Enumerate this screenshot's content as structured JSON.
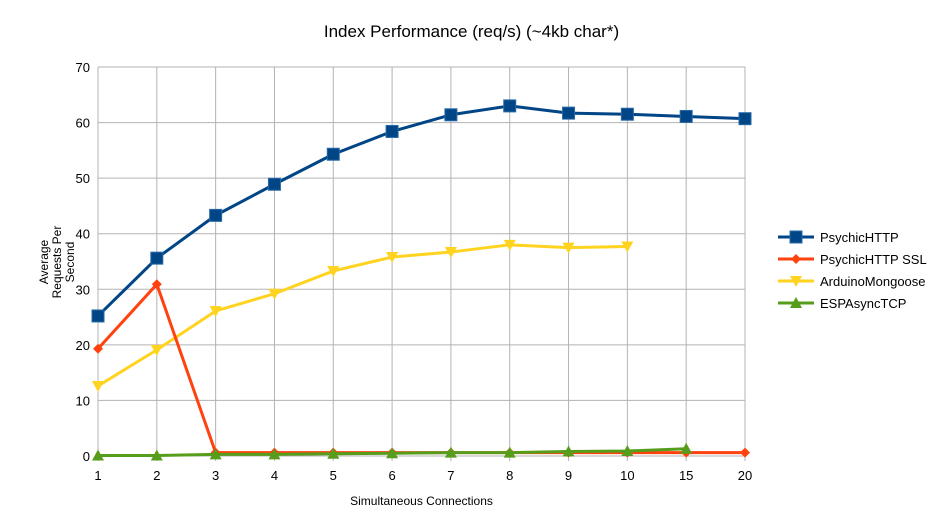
{
  "chart_data": {
    "type": "line",
    "title": "Index Performance (req/s) (~4kb char*)",
    "xlabel": "Simultaneous Connections",
    "ylabel": "Average Requests Per Second",
    "ylim": [
      0,
      70
    ],
    "yticks": [
      0,
      10,
      20,
      30,
      40,
      50,
      60,
      70
    ],
    "grid": true,
    "legend": "right",
    "categories": [
      "1",
      "2",
      "3",
      "4",
      "5",
      "6",
      "7",
      "8",
      "9",
      "10",
      "15",
      "20"
    ],
    "series": [
      {
        "name": "PsychicHTTP",
        "color": "#004586",
        "marker": "square",
        "values": [
          25.2,
          35.6,
          43.3,
          48.9,
          54.3,
          58.4,
          61.4,
          63.0,
          61.7,
          61.5,
          61.1,
          60.7
        ]
      },
      {
        "name": "PsychicHTTP SSL",
        "color": "#ff420e",
        "marker": "diamond",
        "values": [
          19.3,
          30.9,
          0.6,
          0.6,
          0.6,
          0.6,
          0.6,
          0.6,
          0.6,
          0.6,
          0.6,
          0.6
        ]
      },
      {
        "name": "ArduinoMongoose",
        "color": "#ffd320",
        "marker": "triangle-down",
        "values": [
          12.6,
          19.1,
          26.1,
          29.2,
          33.3,
          35.8,
          36.7,
          38.0,
          37.5,
          37.7,
          null,
          null
        ]
      },
      {
        "name": "ESPAsyncTCP",
        "color": "#579d1c",
        "marker": "triangle-up",
        "values": [
          0.1,
          0.1,
          0.3,
          0.3,
          0.4,
          0.5,
          0.6,
          0.6,
          0.8,
          0.9,
          1.3,
          null
        ]
      }
    ]
  }
}
